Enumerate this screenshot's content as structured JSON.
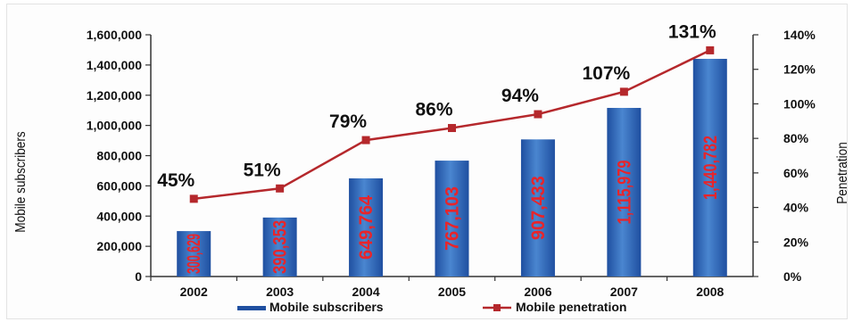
{
  "chart_data": {
    "type": "bar",
    "categories": [
      "2002",
      "2003",
      "2004",
      "2005",
      "2006",
      "2007",
      "2008"
    ],
    "series": [
      {
        "name": "Mobile subscribers",
        "type": "bar",
        "axis": "left",
        "values": [
          300629,
          390353,
          649764,
          767103,
          907433,
          1115979,
          1440782
        ],
        "labels": [
          "300,629",
          "390,353",
          "649,764",
          "767,103",
          "907,433",
          "1,115,979",
          "1,440,782"
        ]
      },
      {
        "name": "Mobile penetration",
        "type": "line",
        "axis": "right",
        "values": [
          45,
          51,
          79,
          86,
          94,
          107,
          131
        ],
        "labels": [
          "45%",
          "51%",
          "79%",
          "86%",
          "94%",
          "107%",
          "131%"
        ]
      }
    ],
    "ylabel": "Mobile subscribers",
    "ylabel_right": "Penetration",
    "ylim": [
      0,
      1600000
    ],
    "ylim_right": [
      0,
      140
    ],
    "yticks": [
      "0",
      "200,000",
      "400,000",
      "600,000",
      "800,000",
      "1,000,000",
      "1,200,000",
      "1,400,000",
      "1,600,000"
    ],
    "yticks_right": [
      "0%",
      "20%",
      "40%",
      "60%",
      "80%",
      "100%",
      "120%",
      "140%"
    ],
    "legend_position": "bottom",
    "grid": false,
    "colors": {
      "bar": "#1f4fa0",
      "bar_light": "#4a86d0",
      "line": "#b5282c",
      "bar_label": "#e8242a",
      "text": "#111111"
    }
  }
}
